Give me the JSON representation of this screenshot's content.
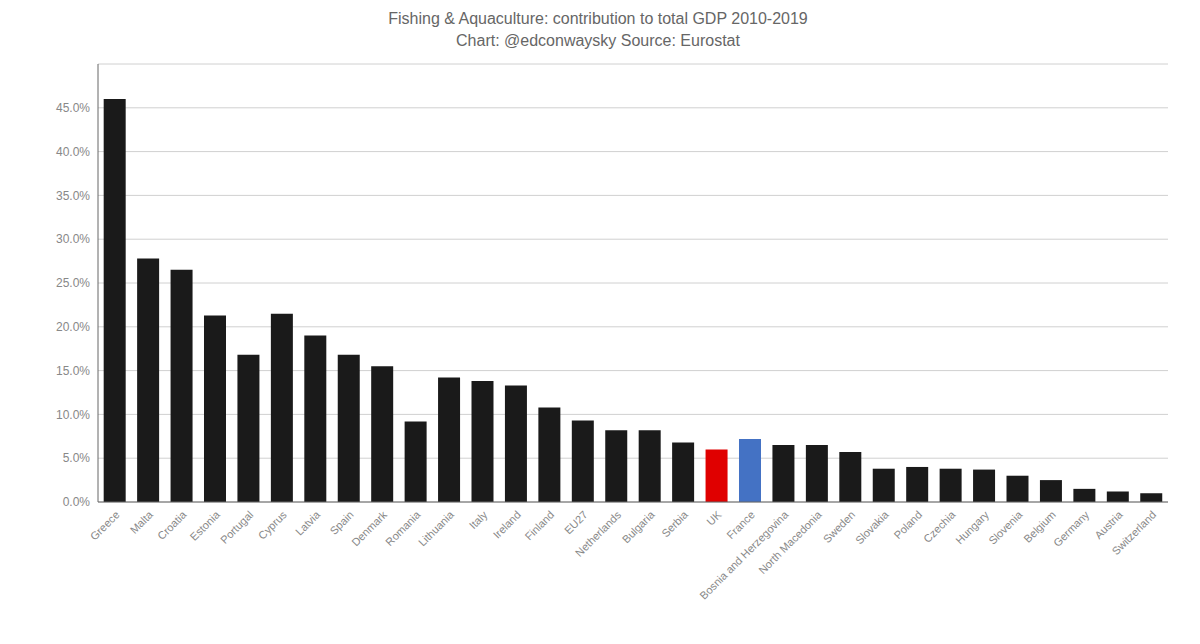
{
  "chart_data": {
    "type": "bar",
    "title": "Fishing & Aquaculture: contribution to total GDP 2010-2019",
    "subtitle": "Chart: @edconwaysky Source: Eurostat",
    "categories": [
      "Greece",
      "Malta",
      "Croatia",
      "Estonia",
      "Portugal",
      "Cyprus",
      "Latvia",
      "Spain",
      "Denmark",
      "Romania",
      "Lithuania",
      "Italy",
      "Ireland",
      "Finland",
      "EU27",
      "Netherlands",
      "Bulgaria",
      "Serbia",
      "UK",
      "France",
      "Bosnia and Herzegovina",
      "North Macedonia",
      "Sweden",
      "Slovakia",
      "Poland",
      "Czechia",
      "Hungary",
      "Slovenia",
      "Belgium",
      "Germany",
      "Austria",
      "Switzerland"
    ],
    "values": [
      0.46,
      0.278,
      0.265,
      0.213,
      0.168,
      0.215,
      0.19,
      0.168,
      0.155,
      0.092,
      0.142,
      0.138,
      0.133,
      0.108,
      0.093,
      0.082,
      0.082,
      0.068,
      0.06,
      0.072,
      0.065,
      0.065,
      0.057,
      0.038,
      0.04,
      0.038,
      0.037,
      0.03,
      0.025,
      0.015,
      0.012,
      0.01
    ],
    "colors": [
      "#1a1a1a",
      "#1a1a1a",
      "#1a1a1a",
      "#1a1a1a",
      "#1a1a1a",
      "#1a1a1a",
      "#1a1a1a",
      "#1a1a1a",
      "#1a1a1a",
      "#1a1a1a",
      "#1a1a1a",
      "#1a1a1a",
      "#1a1a1a",
      "#1a1a1a",
      "#1a1a1a",
      "#1a1a1a",
      "#1a1a1a",
      "#1a1a1a",
      "#e00000",
      "#4472c4",
      "#1a1a1a",
      "#1a1a1a",
      "#1a1a1a",
      "#1a1a1a",
      "#1a1a1a",
      "#1a1a1a",
      "#1a1a1a",
      "#1a1a1a",
      "#1a1a1a",
      "#1a1a1a",
      "#1a1a1a",
      "#1a1a1a"
    ],
    "ylim": [
      0,
      0.5
    ],
    "yticks": [
      {
        "value": 0.0,
        "label": "0.0%"
      },
      {
        "value": 0.05,
        "label": "5.0%"
      },
      {
        "value": 0.1,
        "label": "10.0%"
      },
      {
        "value": 0.15,
        "label": "15.0%"
      },
      {
        "value": 0.2,
        "label": "20.0%"
      },
      {
        "value": 0.25,
        "label": "25.0%"
      },
      {
        "value": 0.3,
        "label": "30.0%"
      },
      {
        "value": 0.35,
        "label": "35.0%"
      },
      {
        "value": 0.4,
        "label": "40.0%"
      },
      {
        "value": 0.45,
        "label": "45.0%"
      }
    ],
    "grid": true
  }
}
